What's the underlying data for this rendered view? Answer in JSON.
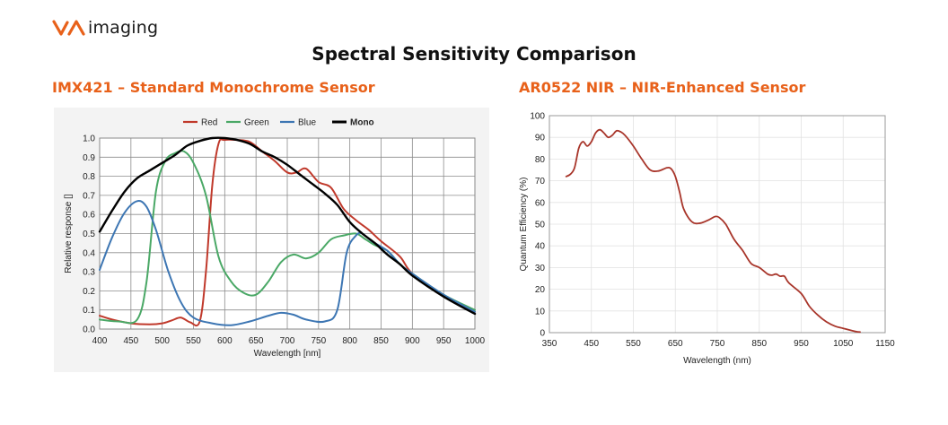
{
  "brand": {
    "name": "imaging",
    "accent": "#e8611a"
  },
  "page_title": "Spectral Sensitivity Comparison",
  "chart_data": [
    {
      "type": "line",
      "title": "IMX421 – Standard Monochrome Sensor",
      "xlabel": "Wavelength [nm]",
      "ylabel": "Relative response []",
      "xlim": [
        400,
        1000
      ],
      "ylim": [
        0,
        1.0
      ],
      "x_ticks": [
        400,
        450,
        500,
        550,
        600,
        650,
        700,
        750,
        800,
        850,
        900,
        950,
        1000
      ],
      "y_ticks": [
        0.0,
        0.1,
        0.2,
        0.3,
        0.4,
        0.5,
        0.6,
        0.7,
        0.8,
        0.9,
        1.0
      ],
      "grid": true,
      "legend_position": "top",
      "series": [
        {
          "name": "Red",
          "color": "#c0392b",
          "points": [
            [
              400,
              0.07
            ],
            [
              420,
              0.05
            ],
            [
              450,
              0.03
            ],
            [
              480,
              0.025
            ],
            [
              500,
              0.03
            ],
            [
              515,
              0.045
            ],
            [
              530,
              0.06
            ],
            [
              545,
              0.035
            ],
            [
              560,
              0.04
            ],
            [
              570,
              0.3
            ],
            [
              580,
              0.75
            ],
            [
              590,
              0.97
            ],
            [
              600,
              0.99
            ],
            [
              620,
              0.99
            ],
            [
              640,
              0.98
            ],
            [
              660,
              0.93
            ],
            [
              680,
              0.88
            ],
            [
              700,
              0.82
            ],
            [
              715,
              0.82
            ],
            [
              730,
              0.84
            ],
            [
              750,
              0.77
            ],
            [
              770,
              0.74
            ],
            [
              790,
              0.63
            ],
            [
              810,
              0.57
            ],
            [
              830,
              0.52
            ],
            [
              850,
              0.46
            ],
            [
              880,
              0.38
            ],
            [
              900,
              0.29
            ],
            [
              950,
              0.17
            ],
            [
              1000,
              0.09
            ]
          ]
        },
        {
          "name": "Green",
          "color": "#4aa866",
          "points": [
            [
              400,
              0.05
            ],
            [
              430,
              0.04
            ],
            [
              460,
              0.05
            ],
            [
              475,
              0.25
            ],
            [
              490,
              0.72
            ],
            [
              505,
              0.88
            ],
            [
              520,
              0.92
            ],
            [
              535,
              0.93
            ],
            [
              550,
              0.87
            ],
            [
              570,
              0.7
            ],
            [
              590,
              0.38
            ],
            [
              610,
              0.25
            ],
            [
              630,
              0.19
            ],
            [
              650,
              0.18
            ],
            [
              670,
              0.25
            ],
            [
              690,
              0.35
            ],
            [
              710,
              0.39
            ],
            [
              730,
              0.37
            ],
            [
              750,
              0.4
            ],
            [
              770,
              0.47
            ],
            [
              790,
              0.49
            ],
            [
              810,
              0.5
            ],
            [
              825,
              0.47
            ],
            [
              840,
              0.44
            ],
            [
              860,
              0.41
            ],
            [
              880,
              0.34
            ],
            [
              900,
              0.29
            ],
            [
              950,
              0.18
            ],
            [
              1000,
              0.1
            ]
          ]
        },
        {
          "name": "Blue",
          "color": "#3d76b3",
          "points": [
            [
              400,
              0.31
            ],
            [
              420,
              0.48
            ],
            [
              440,
              0.61
            ],
            [
              460,
              0.67
            ],
            [
              475,
              0.64
            ],
            [
              490,
              0.52
            ],
            [
              510,
              0.3
            ],
            [
              530,
              0.14
            ],
            [
              550,
              0.06
            ],
            [
              580,
              0.03
            ],
            [
              610,
              0.02
            ],
            [
              640,
              0.04
            ],
            [
              670,
              0.07
            ],
            [
              690,
              0.085
            ],
            [
              710,
              0.075
            ],
            [
              730,
              0.05
            ],
            [
              760,
              0.04
            ],
            [
              780,
              0.1
            ],
            [
              795,
              0.4
            ],
            [
              810,
              0.49
            ],
            [
              820,
              0.5
            ],
            [
              835,
              0.46
            ],
            [
              860,
              0.41
            ],
            [
              880,
              0.34
            ],
            [
              900,
              0.29
            ],
            [
              950,
              0.18
            ],
            [
              1000,
              0.09
            ]
          ]
        },
        {
          "name": "Mono",
          "color": "#000000",
          "points": [
            [
              400,
              0.51
            ],
            [
              420,
              0.62
            ],
            [
              440,
              0.72
            ],
            [
              460,
              0.79
            ],
            [
              480,
              0.83
            ],
            [
              500,
              0.87
            ],
            [
              520,
              0.91
            ],
            [
              540,
              0.96
            ],
            [
              560,
              0.985
            ],
            [
              580,
              1.0
            ],
            [
              600,
              1.0
            ],
            [
              620,
              0.99
            ],
            [
              640,
              0.97
            ],
            [
              660,
              0.93
            ],
            [
              680,
              0.9
            ],
            [
              700,
              0.86
            ],
            [
              720,
              0.81
            ],
            [
              740,
              0.76
            ],
            [
              760,
              0.71
            ],
            [
              780,
              0.65
            ],
            [
              800,
              0.56
            ],
            [
              820,
              0.5
            ],
            [
              840,
              0.45
            ],
            [
              860,
              0.39
            ],
            [
              880,
              0.34
            ],
            [
              900,
              0.28
            ],
            [
              950,
              0.17
            ],
            [
              1000,
              0.08
            ]
          ]
        }
      ]
    },
    {
      "type": "line",
      "title": "AR0522 NIR – NIR-Enhanced Sensor",
      "xlabel": "Wavelength  (nm)",
      "ylabel": "Quantum Efficiency (%)",
      "xlim": [
        350,
        1150
      ],
      "ylim": [
        0,
        100
      ],
      "x_ticks": [
        350,
        450,
        550,
        650,
        750,
        850,
        950,
        1050,
        1150
      ],
      "y_ticks": [
        0,
        10,
        20,
        30,
        40,
        50,
        60,
        70,
        80,
        90,
        100
      ],
      "grid": true,
      "series": [
        {
          "name": "",
          "color": "#a8352a",
          "points": [
            [
              390,
              72
            ],
            [
              400,
              73
            ],
            [
              410,
              76
            ],
            [
              420,
              85
            ],
            [
              430,
              88
            ],
            [
              440,
              86
            ],
            [
              450,
              88
            ],
            [
              460,
              92
            ],
            [
              470,
              93.5
            ],
            [
              480,
              92
            ],
            [
              490,
              90
            ],
            [
              500,
              91
            ],
            [
              510,
              93
            ],
            [
              520,
              92.5
            ],
            [
              530,
              91
            ],
            [
              550,
              86
            ],
            [
              570,
              80
            ],
            [
              590,
              75
            ],
            [
              610,
              74.5
            ],
            [
              630,
              76
            ],
            [
              640,
              75.5
            ],
            [
              650,
              72
            ],
            [
              660,
              65
            ],
            [
              670,
              57
            ],
            [
              690,
              51
            ],
            [
              710,
              50.5
            ],
            [
              730,
              52
            ],
            [
              745,
              53.5
            ],
            [
              755,
              53
            ],
            [
              770,
              50
            ],
            [
              790,
              43
            ],
            [
              810,
              38
            ],
            [
              830,
              32
            ],
            [
              850,
              30
            ],
            [
              870,
              27
            ],
            [
              880,
              26.5
            ],
            [
              890,
              27
            ],
            [
              900,
              26
            ],
            [
              910,
              26
            ],
            [
              920,
              23
            ],
            [
              950,
              18
            ],
            [
              970,
              12
            ],
            [
              990,
              8
            ],
            [
              1010,
              5
            ],
            [
              1030,
              3
            ],
            [
              1050,
              2
            ],
            [
              1080,
              0.5
            ],
            [
              1090,
              0.3
            ]
          ]
        }
      ]
    }
  ]
}
